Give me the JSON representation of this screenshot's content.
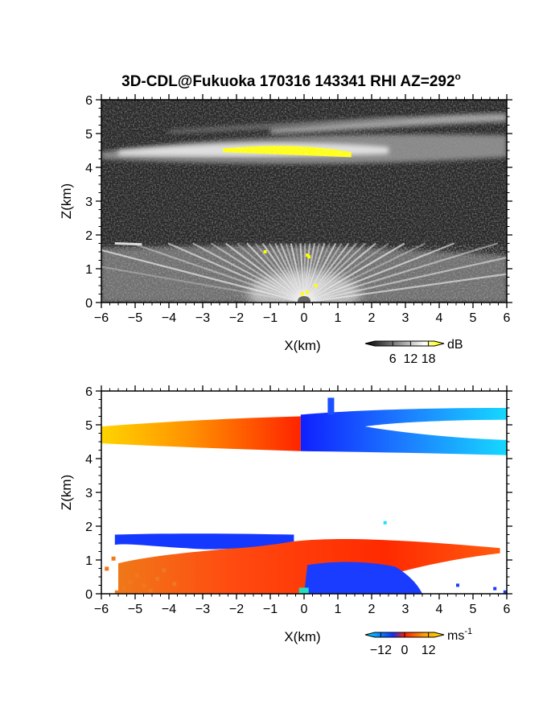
{
  "chart_data": [
    {
      "type": "heatmap",
      "panel": "reflectivity",
      "title": "3D-CDL@Fukuoka 170316 143341 RHI AZ=292",
      "title_superscript": "o",
      "xlabel": "X(km)",
      "ylabel": "Z(km)",
      "xlim": [
        -6,
        6
      ],
      "ylim": [
        0,
        6
      ],
      "xticks": [
        "-6",
        "-5",
        "-4",
        "-3",
        "-2",
        "-1",
        "0",
        "1",
        "2",
        "3",
        "4",
        "5",
        "6"
      ],
      "yticks": [
        "0",
        "1",
        "2",
        "3",
        "4",
        "5",
        "6"
      ],
      "grid": false,
      "colorbar": {
        "label": "dB",
        "ticks": [
          "6",
          "12",
          "18"
        ],
        "range": [
          0,
          20
        ],
        "colors": [
          "#000000",
          "#ffffff",
          "#ffff00"
        ]
      },
      "layers": [
        {
          "feature": "upper cloud layer (bright)",
          "x_range": [
            -6,
            6
          ],
          "z_range": [
            4.2,
            5.6
          ]
        },
        {
          "feature": "saturated band (yellow)",
          "x_range": [
            -2.4,
            1.4
          ],
          "z_range": [
            4.3,
            4.7
          ]
        },
        {
          "feature": "boundary layer fan",
          "x_range": [
            -6,
            6
          ],
          "z_range": [
            0,
            1.8
          ]
        }
      ]
    },
    {
      "type": "heatmap",
      "panel": "doppler velocity",
      "xlabel": "X(km)",
      "ylabel": "Z(km)",
      "xlim": [
        -6,
        6
      ],
      "ylim": [
        0,
        6
      ],
      "xticks": [
        "-6",
        "-5",
        "-4",
        "-3",
        "-2",
        "-1",
        "0",
        "1",
        "2",
        "3",
        "4",
        "5",
        "6"
      ],
      "yticks": [
        "0",
        "1",
        "2",
        "3",
        "4",
        "5",
        "6"
      ],
      "grid": false,
      "colorbar": {
        "label": "ms",
        "label_superscript": "-1",
        "ticks": [
          "-12",
          "0",
          "12"
        ],
        "range": [
          -15,
          15
        ],
        "colors": [
          "#00e5ff",
          "#1030ff",
          "#ff2000",
          "#ffa000",
          "#ffe000"
        ]
      },
      "regions": [
        {
          "feature": "upper layer west",
          "x_range": [
            -6,
            -0.1
          ],
          "z_range": [
            4.2,
            5.2
          ],
          "velocity_ms": [
            12,
            0
          ]
        },
        {
          "feature": "upper layer east",
          "x_range": [
            -0.1,
            6
          ],
          "z_range": [
            4.1,
            5.8
          ],
          "velocity_ms": [
            -3,
            -12
          ]
        },
        {
          "feature": "lower layer top west",
          "x_range": [
            -5.6,
            -0.3
          ],
          "z_range": [
            1.2,
            1.8
          ],
          "velocity_ms": [
            -4,
            -4
          ]
        },
        {
          "feature": "lower layer main",
          "x_range": [
            -5.5,
            5.8
          ],
          "z_range": [
            0,
            1.7
          ],
          "velocity_ms": [
            2,
            8
          ]
        },
        {
          "feature": "lower layer east core",
          "x_range": [
            0,
            3.5
          ],
          "z_range": [
            0,
            1.0
          ],
          "velocity_ms": [
            -4,
            -4
          ]
        }
      ]
    }
  ]
}
